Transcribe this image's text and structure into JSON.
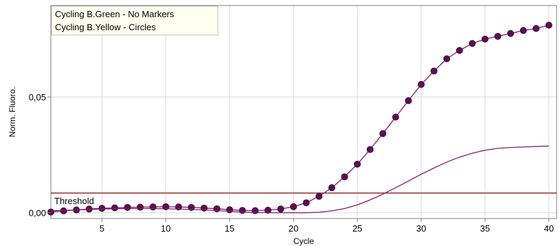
{
  "colors": {
    "plot_bg": "#ffffff",
    "grid": "#d9d9d9",
    "axis": "#7f7f7f",
    "series_line": "#7a1f6a",
    "marker_fill": "#5b0f52",
    "threshold": "#8b1a1a",
    "legend_bg": "#fffff0"
  },
  "chart_data": {
    "type": "line",
    "title": "",
    "xlabel": "Cycle",
    "ylabel": "Norm. Fluoro.",
    "xlim": [
      1,
      40.6
    ],
    "ylim": [
      -0.0025,
      0.0895
    ],
    "x_ticks": [
      5,
      10,
      15,
      20,
      25,
      30,
      35,
      40
    ],
    "x_tick_labels": [
      "5",
      "10",
      "15",
      "20",
      "25",
      "30",
      "35",
      "40"
    ],
    "y_ticks": [
      0.0,
      0.05
    ],
    "y_tick_labels": [
      "0,00",
      "0,05"
    ],
    "grid": true,
    "legend": {
      "position": "top-left",
      "entries": [
        "Cycling B.Green - No Markers",
        "Cycling B.Yellow - Circles"
      ]
    },
    "threshold": {
      "label": "Threshold",
      "value": 0.0085
    },
    "series": [
      {
        "name": "Cycling B.Yellow - Circles",
        "marker": "circle",
        "x": [
          1,
          2,
          3,
          4,
          5,
          6,
          7,
          8,
          9,
          10,
          11,
          12,
          13,
          14,
          15,
          16,
          17,
          18,
          19,
          20,
          21,
          22,
          23,
          24,
          25,
          26,
          27,
          28,
          29,
          30,
          31,
          32,
          33,
          34,
          35,
          36,
          37,
          38,
          39,
          40
        ],
        "values": [
          0.0003,
          0.0008,
          0.0012,
          0.0016,
          0.0019,
          0.0021,
          0.0023,
          0.0024,
          0.0025,
          0.0026,
          0.0025,
          0.0023,
          0.002,
          0.0017,
          0.0013,
          0.001,
          0.0009,
          0.0011,
          0.0016,
          0.0026,
          0.0043,
          0.0071,
          0.0108,
          0.0155,
          0.021,
          0.0273,
          0.0342,
          0.0413,
          0.0484,
          0.0554,
          0.0612,
          0.0665,
          0.0701,
          0.0731,
          0.075,
          0.0762,
          0.0774,
          0.0787,
          0.0796,
          0.081
        ]
      },
      {
        "name": "Cycling B.Green - No Markers",
        "marker": "none",
        "x": [
          1,
          2,
          3,
          4,
          5,
          6,
          7,
          8,
          9,
          10,
          11,
          12,
          13,
          14,
          15,
          16,
          17,
          18,
          19,
          20,
          21,
          22,
          23,
          24,
          25,
          26,
          27,
          28,
          29,
          30,
          31,
          32,
          33,
          34,
          35,
          36,
          37,
          38,
          39,
          40
        ],
        "values": [
          0.0008,
          0.001,
          0.0012,
          0.0014,
          0.0016,
          0.0017,
          0.0018,
          0.0018,
          0.0018,
          0.0017,
          0.0016,
          0.0014,
          0.0012,
          0.0009,
          0.0006,
          0.0003,
          0.0001,
          0.0,
          0.0,
          0.0,
          0.0,
          0.0002,
          0.0008,
          0.0018,
          0.0034,
          0.0055,
          0.008,
          0.0108,
          0.0137,
          0.0166,
          0.0193,
          0.0219,
          0.024,
          0.0257,
          0.027,
          0.0278,
          0.0282,
          0.0284,
          0.0286,
          0.0288
        ]
      }
    ]
  }
}
